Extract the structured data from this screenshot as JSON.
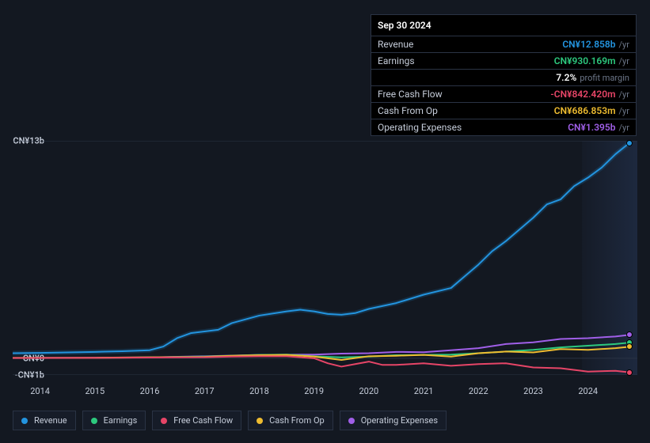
{
  "tooltip": {
    "header": "Sep 30 2024",
    "rows": [
      {
        "label": "Revenue",
        "value": "CN¥12.858b",
        "unit": "/yr",
        "color": "#2394df"
      },
      {
        "label": "Earnings",
        "value": "CN¥930.169m",
        "unit": "/yr",
        "color": "#2dc97e"
      },
      {
        "label": "",
        "value": "7.2%",
        "unit": "profit margin",
        "color": "#ffffff"
      },
      {
        "label": "Free Cash Flow",
        "value": "-CN¥842.420m",
        "unit": "/yr",
        "color": "#e64567"
      },
      {
        "label": "Cash From Op",
        "value": "CN¥686.853m",
        "unit": "/yr",
        "color": "#eebc30"
      },
      {
        "label": "Operating Expenses",
        "value": "CN¥1.395b",
        "unit": "/yr",
        "color": "#a05fe8"
      }
    ]
  },
  "chart": {
    "type": "line",
    "background_color": "#131821",
    "grid_color": "#2a3344",
    "text_color": "#c5ccd9",
    "x_range": [
      2013.5,
      2024.9
    ],
    "y_range": [
      -1,
      13
    ],
    "y_ticks": [
      {
        "value": 13,
        "label": "CN¥13b"
      },
      {
        "value": 0,
        "label": "CN¥0"
      },
      {
        "value": -1,
        "label": "-CN¥1b"
      }
    ],
    "x_ticks": [
      2014,
      2015,
      2016,
      2017,
      2018,
      2019,
      2020,
      2021,
      2022,
      2023,
      2024
    ],
    "line_width": 2,
    "highlight_band_gradient": [
      "rgba(60,90,150,0.05)",
      "rgba(60,90,150,0.25)"
    ],
    "series": [
      {
        "name": "Revenue",
        "color": "#2394df",
        "glow": true,
        "points": [
          [
            2013.5,
            0.3
          ],
          [
            2014,
            0.32
          ],
          [
            2014.5,
            0.35
          ],
          [
            2015,
            0.38
          ],
          [
            2015.5,
            0.42
          ],
          [
            2016,
            0.48
          ],
          [
            2016.25,
            0.7
          ],
          [
            2016.5,
            1.2
          ],
          [
            2016.75,
            1.5
          ],
          [
            2017,
            1.6
          ],
          [
            2017.25,
            1.7
          ],
          [
            2017.5,
            2.1
          ],
          [
            2018,
            2.55
          ],
          [
            2018.5,
            2.8
          ],
          [
            2018.75,
            2.9
          ],
          [
            2019,
            2.8
          ],
          [
            2019.25,
            2.65
          ],
          [
            2019.5,
            2.6
          ],
          [
            2019.75,
            2.7
          ],
          [
            2020,
            2.95
          ],
          [
            2020.5,
            3.3
          ],
          [
            2021,
            3.8
          ],
          [
            2021.5,
            4.2
          ],
          [
            2021.75,
            4.9
          ],
          [
            2022,
            5.6
          ],
          [
            2022.25,
            6.4
          ],
          [
            2022.5,
            7.0
          ],
          [
            2023,
            8.4
          ],
          [
            2023.25,
            9.2
          ],
          [
            2023.5,
            9.5
          ],
          [
            2023.75,
            10.3
          ],
          [
            2024,
            10.8
          ],
          [
            2024.25,
            11.4
          ],
          [
            2024.5,
            12.2
          ],
          [
            2024.75,
            12.858
          ]
        ]
      },
      {
        "name": "Operating Expenses",
        "color": "#a05fe8",
        "points": [
          [
            2013.5,
            0.02
          ],
          [
            2015,
            0.03
          ],
          [
            2016,
            0.05
          ],
          [
            2017,
            0.12
          ],
          [
            2018,
            0.2
          ],
          [
            2019,
            0.22
          ],
          [
            2019.5,
            0.28
          ],
          [
            2020,
            0.3
          ],
          [
            2020.5,
            0.38
          ],
          [
            2021,
            0.36
          ],
          [
            2021.5,
            0.48
          ],
          [
            2022,
            0.6
          ],
          [
            2022.5,
            0.85
          ],
          [
            2023,
            0.95
          ],
          [
            2023.5,
            1.15
          ],
          [
            2024,
            1.2
          ],
          [
            2024.5,
            1.3
          ],
          [
            2024.75,
            1.395
          ]
        ]
      },
      {
        "name": "Earnings",
        "color": "#2dc97e",
        "points": [
          [
            2013.5,
            0.01
          ],
          [
            2015,
            0.015
          ],
          [
            2016,
            0.05
          ],
          [
            2017,
            0.1
          ],
          [
            2018,
            0.2
          ],
          [
            2018.5,
            0.22
          ],
          [
            2019,
            0.12
          ],
          [
            2019.5,
            0.05
          ],
          [
            2020,
            0.1
          ],
          [
            2020.5,
            0.18
          ],
          [
            2021,
            0.2
          ],
          [
            2021.5,
            0.22
          ],
          [
            2022,
            0.3
          ],
          [
            2022.5,
            0.4
          ],
          [
            2023,
            0.5
          ],
          [
            2023.5,
            0.65
          ],
          [
            2024,
            0.75
          ],
          [
            2024.5,
            0.85
          ],
          [
            2024.75,
            0.93
          ]
        ]
      },
      {
        "name": "Cash From Op",
        "color": "#eebc30",
        "points": [
          [
            2013.5,
            0.02
          ],
          [
            2015,
            0.03
          ],
          [
            2016,
            0.06
          ],
          [
            2017,
            0.08
          ],
          [
            2017.5,
            0.15
          ],
          [
            2018,
            0.18
          ],
          [
            2018.5,
            0.2
          ],
          [
            2019,
            0.1
          ],
          [
            2019.5,
            -0.1
          ],
          [
            2020,
            0.12
          ],
          [
            2020.5,
            0.15
          ],
          [
            2021,
            0.2
          ],
          [
            2021.5,
            0.1
          ],
          [
            2022,
            0.3
          ],
          [
            2022.5,
            0.4
          ],
          [
            2023,
            0.35
          ],
          [
            2023.5,
            0.55
          ],
          [
            2024,
            0.5
          ],
          [
            2024.5,
            0.6
          ],
          [
            2024.75,
            0.687
          ]
        ]
      },
      {
        "name": "Free Cash Flow",
        "color": "#e64567",
        "points": [
          [
            2013.5,
            0.01
          ],
          [
            2015,
            0.02
          ],
          [
            2016,
            0.04
          ],
          [
            2017,
            0.06
          ],
          [
            2017.5,
            0.1
          ],
          [
            2018,
            0.12
          ],
          [
            2018.5,
            0.12
          ],
          [
            2019,
            0.0
          ],
          [
            2019.25,
            -0.3
          ],
          [
            2019.5,
            -0.5
          ],
          [
            2019.75,
            -0.35
          ],
          [
            2020,
            -0.2
          ],
          [
            2020.25,
            -0.4
          ],
          [
            2020.5,
            -0.4
          ],
          [
            2021,
            -0.3
          ],
          [
            2021.5,
            -0.45
          ],
          [
            2022,
            -0.35
          ],
          [
            2022.5,
            -0.3
          ],
          [
            2023,
            -0.55
          ],
          [
            2023.5,
            -0.6
          ],
          [
            2024,
            -0.8
          ],
          [
            2024.5,
            -0.75
          ],
          [
            2024.75,
            -0.842
          ]
        ]
      }
    ]
  },
  "legend": [
    {
      "label": "Revenue",
      "color": "#2394df"
    },
    {
      "label": "Earnings",
      "color": "#2dc97e"
    },
    {
      "label": "Free Cash Flow",
      "color": "#e64567"
    },
    {
      "label": "Cash From Op",
      "color": "#eebc30"
    },
    {
      "label": "Operating Expenses",
      "color": "#a05fe8"
    }
  ]
}
